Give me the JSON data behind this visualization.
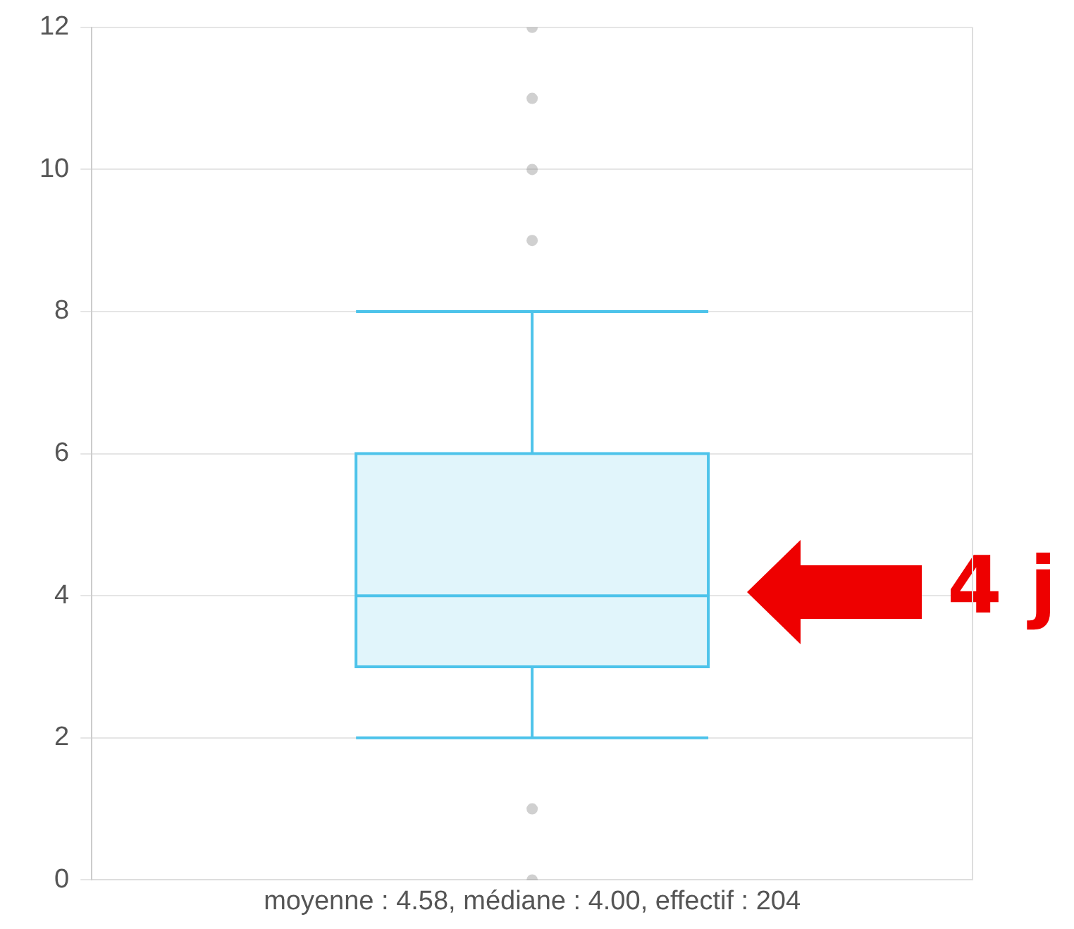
{
  "chart_data": {
    "type": "box",
    "xlabel": "moyenne : 4.58, médiane : 4.00, effectif : 204",
    "categories": [
      null
    ],
    "boxes": [
      {
        "low": 2,
        "q1": 3,
        "median": 4,
        "q3": 6,
        "high": 8,
        "outliers": [
          0,
          1,
          9,
          10,
          11,
          12
        ]
      }
    ],
    "color": "#4dc3ea",
    "ylim": [
      0,
      12
    ],
    "yticks": [
      0,
      2,
      4,
      6,
      8,
      10,
      12
    ],
    "grid": "y",
    "tick_labels": "y",
    "annotations": [
      "4 j"
    ]
  }
}
